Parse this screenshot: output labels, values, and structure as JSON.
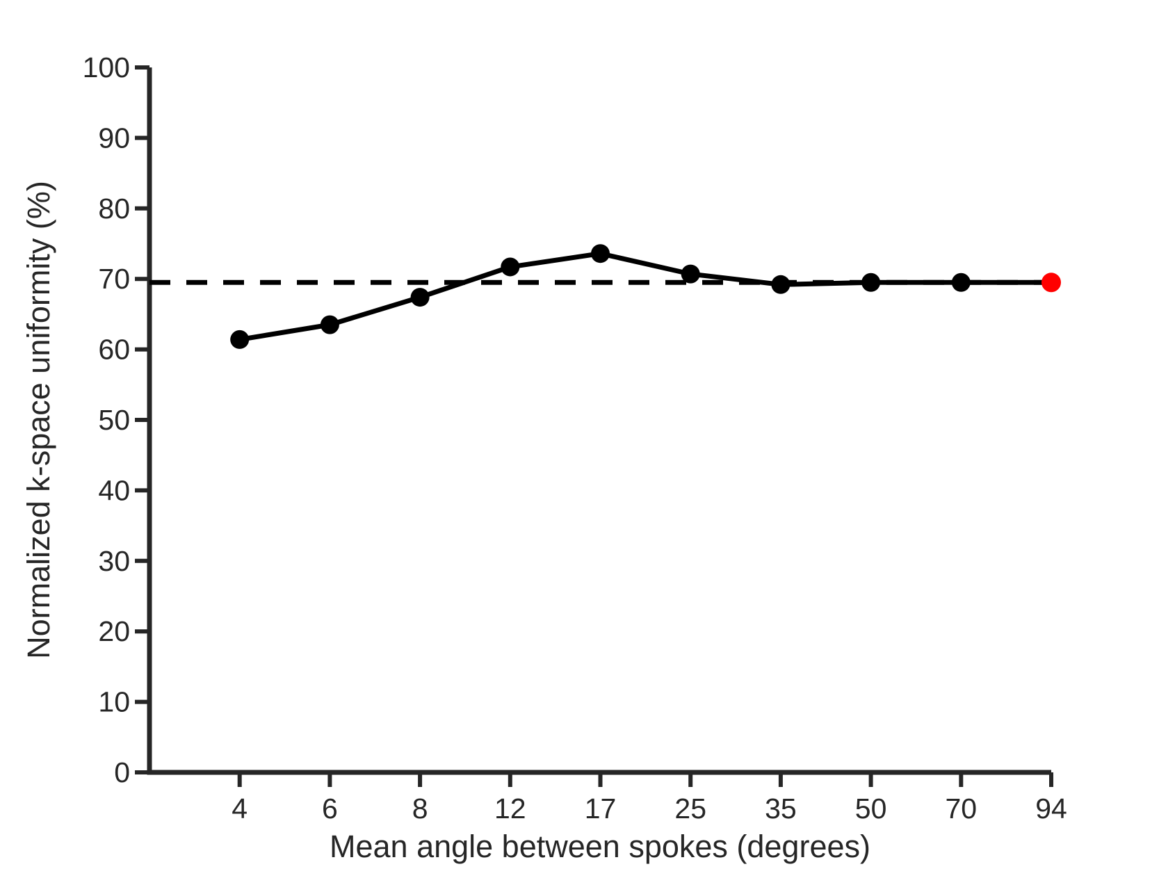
{
  "chart_data": {
    "type": "line",
    "xlabel": "Mean angle between spokes (degrees)",
    "ylabel": "Normalized k-space uniformity (%)",
    "categories": [
      "4",
      "6",
      "8",
      "12",
      "17",
      "25",
      "35",
      "50",
      "70",
      "94"
    ],
    "series": [
      {
        "name": "normalized-k-space-uniformity",
        "values": [
          61.4,
          63.5,
          67.4,
          71.7,
          73.6,
          70.7,
          69.2,
          69.5,
          69.5,
          69.5
        ]
      }
    ],
    "highlight_point": {
      "category": "94",
      "value": 69.5,
      "color": "#ff0000"
    },
    "reference_line": {
      "value": 69.5,
      "style": "dashed",
      "color": "#000000"
    },
    "ylim": [
      0,
      100
    ],
    "yticks": [
      0,
      10,
      20,
      30,
      40,
      50,
      60,
      70,
      80,
      90,
      100
    ],
    "grid": false,
    "legend": "none",
    "colors": {
      "line": "#000000",
      "marker": "#000000",
      "axis": "#262626",
      "text": "#262626",
      "background": "#ffffff"
    }
  }
}
